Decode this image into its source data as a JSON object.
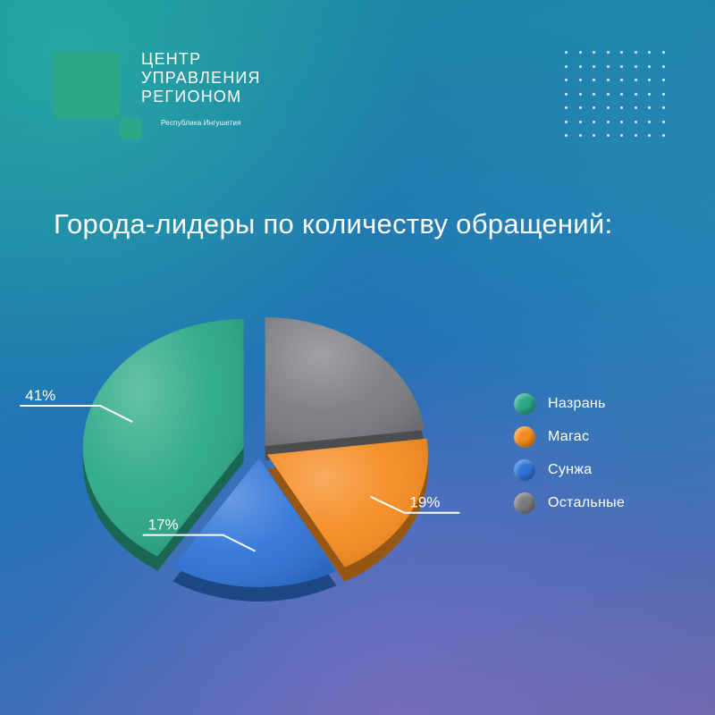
{
  "brand": {
    "name_lines": [
      "ЦЕНТР",
      "УПРАВЛЕНИЯ",
      "РЕГИОНОМ"
    ],
    "subtitle": "Республика Ингушетия",
    "color": "#2aa886"
  },
  "chart_data": {
    "type": "pie",
    "title": "Города-лидеры по количеству обращений:",
    "slices": [
      {
        "name": "Назрань",
        "value": 41,
        "label": "41%",
        "color": "#2aa886"
      },
      {
        "name": "Остальные",
        "value": 23,
        "label": "",
        "color": "#7a7c80"
      },
      {
        "name": "Магас",
        "value": 19,
        "label": "19%",
        "color": "#f58a1f"
      },
      {
        "name": "Сунжа",
        "value": 17,
        "label": "17%",
        "color": "#2f74d8"
      }
    ],
    "legend": {
      "placement": "right",
      "order": [
        "Назрань",
        "Магас",
        "Сунжа",
        "Остальные"
      ]
    }
  }
}
